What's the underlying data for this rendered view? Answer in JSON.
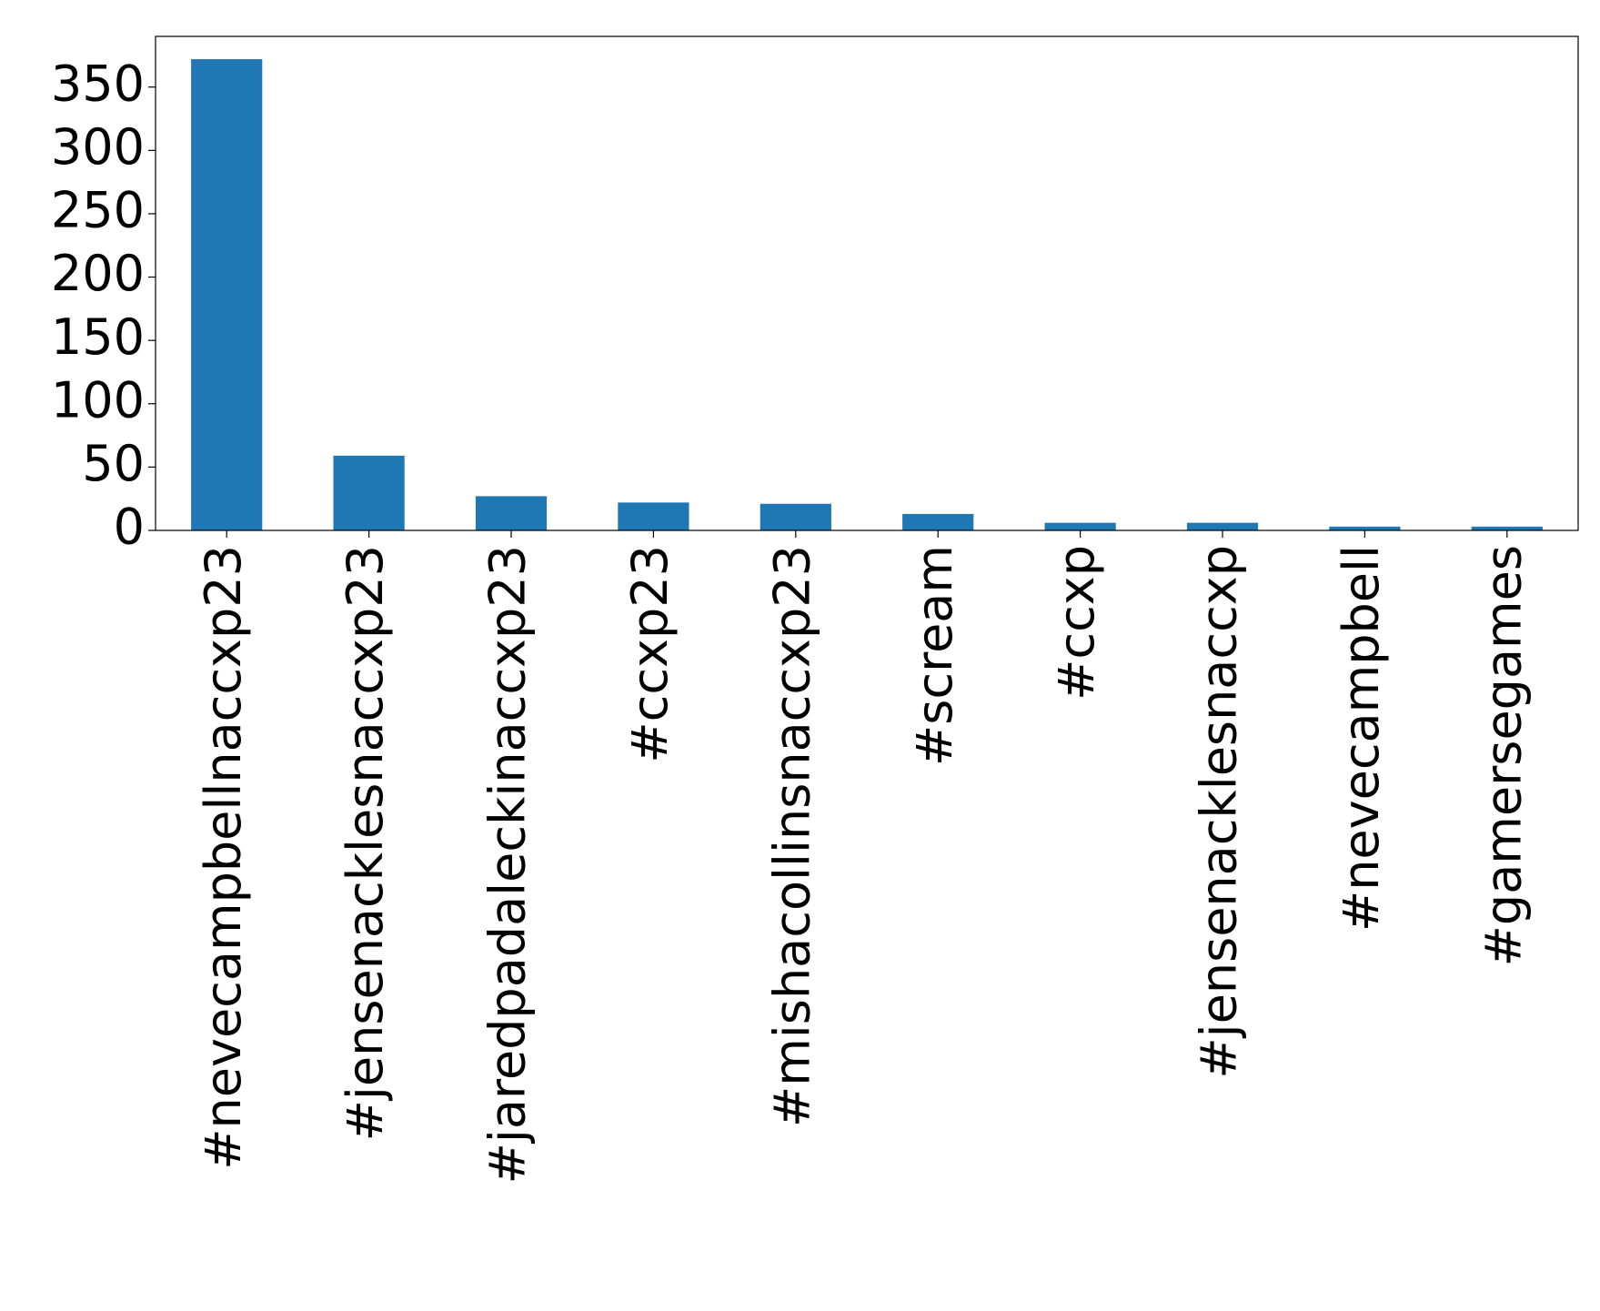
{
  "chart_data": {
    "type": "bar",
    "categories": [
      "#nevecampbellnaccxp23",
      "#jensenacklesnaccxp23",
      "#jaredpadaleckinaccxp23",
      "#ccxp23",
      "#mishacollinsnaccxp23",
      "#scream",
      "#ccxp",
      "#jensenacklesnaccxp",
      "#nevecampbell",
      "#gamersegames"
    ],
    "values": [
      372,
      59,
      27,
      22,
      21,
      13,
      6,
      6,
      3,
      3
    ],
    "color": "#1f77b4",
    "ylim": [
      0,
      390
    ],
    "yticks": [
      0,
      50,
      100,
      150,
      200,
      250,
      300,
      350
    ],
    "grid": false
  }
}
